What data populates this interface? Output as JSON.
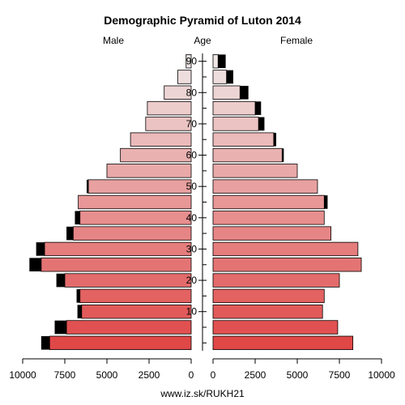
{
  "chart_data": {
    "type": "bar",
    "title": "Demographic Pyramid of Luton 2014",
    "left_label": "Male",
    "center_label": "Age",
    "right_label": "Female",
    "footer": "www.iz.sk/RUKH21",
    "age_ticks": [
      "10",
      "20",
      "30",
      "40",
      "50",
      "60",
      "70",
      "80",
      "90"
    ],
    "x_ticks_male": [
      "10000",
      "7500",
      "5000",
      "2500",
      "0"
    ],
    "x_ticks_female": [
      "0",
      "2500",
      "5000",
      "7500",
      "10000"
    ],
    "xlim": [
      0,
      10000
    ],
    "age_groups": [
      "0-4",
      "5-9",
      "10-14",
      "15-19",
      "20-24",
      "25-29",
      "30-34",
      "35-39",
      "40-44",
      "45-49",
      "50-54",
      "55-59",
      "60-64",
      "65-69",
      "70-74",
      "75-79",
      "80-84",
      "85-89",
      "90+"
    ],
    "series": [
      {
        "name": "Male",
        "values": [
          8400,
          7400,
          6500,
          6600,
          7500,
          8900,
          8700,
          7000,
          6600,
          6700,
          6100,
          5000,
          4200,
          3600,
          2700,
          2600,
          1600,
          800,
          300
        ],
        "surplus": [
          500,
          700,
          250,
          200,
          500,
          700,
          500,
          400,
          300,
          0,
          100,
          0,
          0,
          0,
          0,
          0,
          0,
          0,
          0
        ]
      },
      {
        "name": "Female",
        "values": [
          8300,
          7400,
          6500,
          6600,
          7500,
          8800,
          8600,
          7000,
          6600,
          6600,
          6200,
          5000,
          4100,
          3600,
          2700,
          2500,
          1600,
          800,
          300
        ],
        "surplus": [
          0,
          0,
          0,
          0,
          0,
          0,
          0,
          0,
          0,
          200,
          0,
          0,
          100,
          150,
          350,
          350,
          500,
          400,
          450
        ]
      }
    ],
    "colors": {
      "bar_low": "#e04848",
      "bar_high": "#efe6e6",
      "surplus": "#000000",
      "outline": "#000000"
    }
  }
}
